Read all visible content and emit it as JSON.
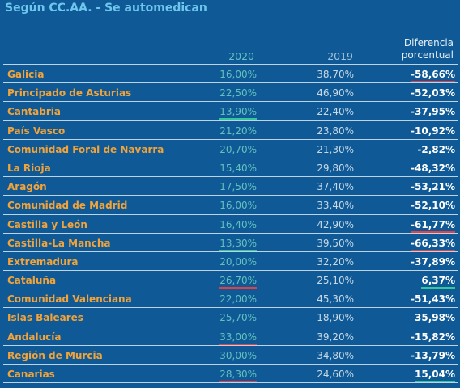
{
  "title": "Según CC.AA. - Se automedican",
  "headers": {
    "col_2020": "2020",
    "col_2019": "2019",
    "col_diff_line1": "Diferencia",
    "col_diff_line2": "porcentual"
  },
  "colors": {
    "background": "#0f5a96",
    "region_text": "#f2a33a",
    "underline_negative": "#e34044",
    "underline_positive": "#33c79a"
  },
  "rows": [
    {
      "region": "Galicia",
      "v2020": "16,00%",
      "v2019": "38,70%",
      "diff": "-58,66%",
      "mark2020": "",
      "markdiff": "red"
    },
    {
      "region": "Principado de Asturias",
      "v2020": "22,50%",
      "v2019": "46,90%",
      "diff": "-52,03%",
      "mark2020": "",
      "markdiff": ""
    },
    {
      "region": "Cantabria",
      "v2020": "13,90%",
      "v2019": "22,40%",
      "diff": "-37,95%",
      "mark2020": "green",
      "markdiff": ""
    },
    {
      "region": "País Vasco",
      "v2020": "21,20%",
      "v2019": "23,80%",
      "diff": "-10,92%",
      "mark2020": "",
      "markdiff": ""
    },
    {
      "region": "Comunidad Foral de Navarra",
      "v2020": "20,70%",
      "v2019": "21,30%",
      "diff": "-2,82%",
      "mark2020": "",
      "markdiff": ""
    },
    {
      "region": "La Rioja",
      "v2020": "15,40%",
      "v2019": "29,80%",
      "diff": "-48,32%",
      "mark2020": "",
      "markdiff": ""
    },
    {
      "region": "Aragón",
      "v2020": "17,50%",
      "v2019": "37,40%",
      "diff": "-53,21%",
      "mark2020": "",
      "markdiff": ""
    },
    {
      "region": "Comunidad de Madrid",
      "v2020": "16,00%",
      "v2019": "33,40%",
      "diff": "-52,10%",
      "mark2020": "",
      "markdiff": ""
    },
    {
      "region": "Castilla y León",
      "v2020": "16,40%",
      "v2019": "42,90%",
      "diff": "-61,77%",
      "mark2020": "",
      "markdiff": "red"
    },
    {
      "region": "Castilla-La Mancha",
      "v2020": "13,30%",
      "v2019": "39,50%",
      "diff": "-66,33%",
      "mark2020": "green",
      "markdiff": "red"
    },
    {
      "region": "Extremadura",
      "v2020": "20,00%",
      "v2019": "32,20%",
      "diff": "-37,89%",
      "mark2020": "",
      "markdiff": ""
    },
    {
      "region": "Cataluña",
      "v2020": "26,70%",
      "v2019": "25,10%",
      "diff": "6,37%",
      "mark2020": "red",
      "markdiff": "green"
    },
    {
      "region": "Comunidad Valenciana",
      "v2020": "22,00%",
      "v2019": "45,30%",
      "diff": "-51,43%",
      "mark2020": "",
      "markdiff": ""
    },
    {
      "region": "Islas Baleares",
      "v2020": "25,70%",
      "v2019": "18,90%",
      "diff": "35,98%",
      "mark2020": "",
      "markdiff": ""
    },
    {
      "region": "Andalucía",
      "v2020": "33,00%",
      "v2019": "39,20%",
      "diff": "-15,82%",
      "mark2020": "red",
      "markdiff": ""
    },
    {
      "region": "Región de Murcia",
      "v2020": "30,00%",
      "v2019": "34,80%",
      "diff": "-13,79%",
      "mark2020": "",
      "markdiff": ""
    },
    {
      "region": "Canarias",
      "v2020": "28,30%",
      "v2019": "24,60%",
      "diff": "15,04%",
      "mark2020": "red",
      "markdiff": "green"
    }
  ]
}
